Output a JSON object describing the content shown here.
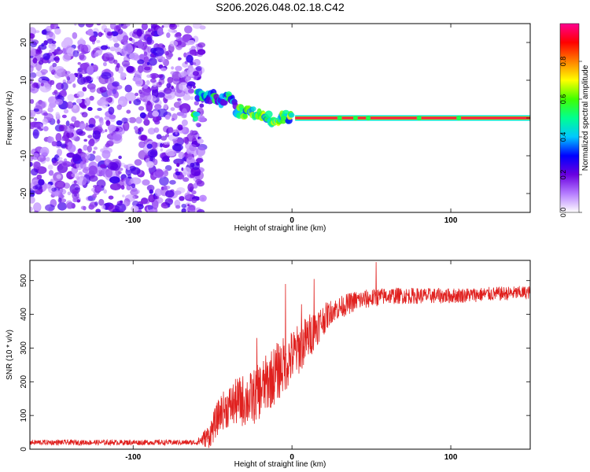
{
  "title": "S206.2026.048.02.18.C42",
  "chart_data": [
    {
      "type": "heatmap",
      "name": "spectrogram",
      "xlabel": "Height of straight line (km)",
      "ylabel": "Frequency (Hz)",
      "xlim": [
        -165,
        150
      ],
      "ylim": [
        -25,
        25
      ],
      "xticks": [
        -100,
        0,
        100
      ],
      "yticks": [
        20,
        10,
        0,
        -10,
        -20
      ],
      "colorbar": {
        "label": "Normalized spectral amplitude",
        "range": [
          0,
          1
        ],
        "ticks": [
          0.0,
          0.2,
          0.4,
          0.6,
          0.8
        ],
        "colors": [
          "#ffffff",
          "#b57cff",
          "#6a00e0",
          "#0000ff",
          "#00c8ff",
          "#00ff90",
          "#40ff00",
          "#ffff00",
          "#ff8000",
          "#ff0000",
          "#ff0090"
        ]
      },
      "noise_region_km": [
        -165,
        -60
      ],
      "signal_ridge": [
        {
          "x": -60,
          "y": 6
        },
        {
          "x": -55,
          "y": 5
        },
        {
          "x": -50,
          "y": 6
        },
        {
          "x": -45,
          "y": 4
        },
        {
          "x": -40,
          "y": 7
        },
        {
          "x": -35,
          "y": 2
        },
        {
          "x": -30,
          "y": 1.5
        },
        {
          "x": -25,
          "y": 2
        },
        {
          "x": -20,
          "y": 0.5
        },
        {
          "x": -15,
          "y": 0
        },
        {
          "x": -10,
          "y": -1
        },
        {
          "x": -5,
          "y": 0.5
        },
        {
          "x": 0,
          "y": 0
        },
        {
          "x": 5,
          "y": 0
        },
        {
          "x": 150,
          "y": 0
        }
      ]
    },
    {
      "type": "line",
      "name": "snr",
      "xlabel": "Height of straight line (km)",
      "ylabel": "SNR (10 * v/v)",
      "xlim": [
        -165,
        150
      ],
      "ylim": [
        0,
        560
      ],
      "xticks": [
        -100,
        0,
        100
      ],
      "yticks": [
        0,
        100,
        200,
        300,
        400,
        500
      ],
      "color": "#e0201e",
      "trend": [
        {
          "x": -165,
          "y": 20
        },
        {
          "x": -60,
          "y": 20
        },
        {
          "x": -52,
          "y": 40
        },
        {
          "x": -45,
          "y": 110
        },
        {
          "x": -35,
          "y": 140
        },
        {
          "x": -25,
          "y": 150
        },
        {
          "x": -15,
          "y": 200
        },
        {
          "x": -5,
          "y": 250
        },
        {
          "x": 5,
          "y": 300
        },
        {
          "x": 15,
          "y": 360
        },
        {
          "x": 25,
          "y": 410
        },
        {
          "x": 40,
          "y": 440
        },
        {
          "x": 60,
          "y": 455
        },
        {
          "x": 100,
          "y": 455
        },
        {
          "x": 150,
          "y": 465
        }
      ],
      "noise_amplitude": [
        {
          "x": -165,
          "y": 8
        },
        {
          "x": -60,
          "y": 8
        },
        {
          "x": -50,
          "y": 45
        },
        {
          "x": -30,
          "y": 80
        },
        {
          "x": -10,
          "y": 90
        },
        {
          "x": 10,
          "y": 70
        },
        {
          "x": 25,
          "y": 35
        },
        {
          "x": 60,
          "y": 25
        },
        {
          "x": 150,
          "y": 20
        }
      ],
      "spikes": [
        {
          "x": -4,
          "y": 490
        },
        {
          "x": 14,
          "y": 505
        },
        {
          "x": 53,
          "y": 555
        },
        {
          "x": 6,
          "y": 430
        },
        {
          "x": -22,
          "y": 330
        }
      ]
    }
  ]
}
